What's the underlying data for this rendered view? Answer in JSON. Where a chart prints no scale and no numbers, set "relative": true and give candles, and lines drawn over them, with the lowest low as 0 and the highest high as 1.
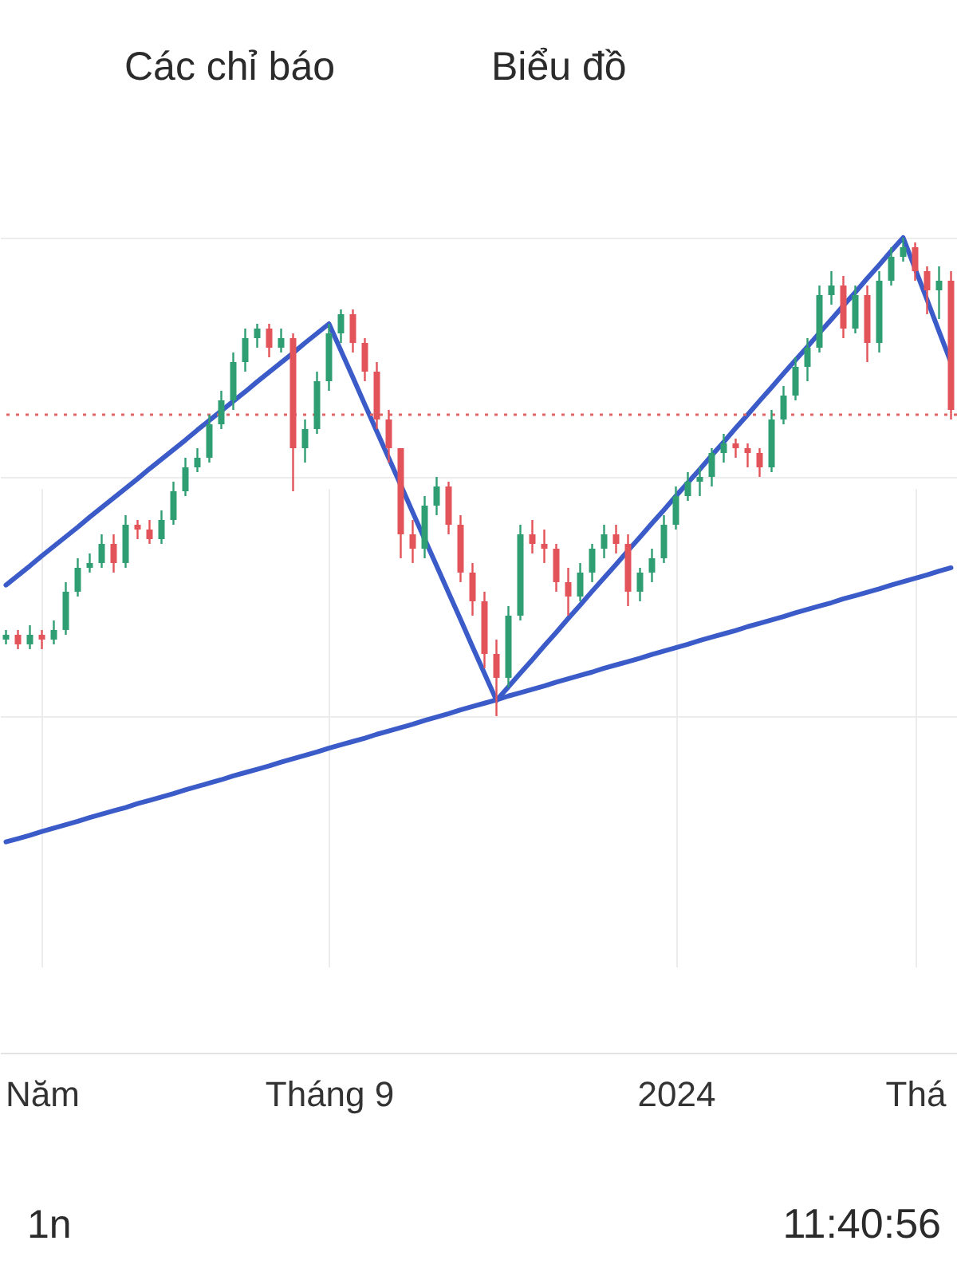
{
  "chart_data": {
    "type": "candlestick",
    "relative": true,
    "categories": [
      null,
      null,
      null,
      "Năm",
      null,
      null,
      null,
      null,
      null,
      null,
      null,
      null,
      null,
      null,
      null,
      null,
      null,
      null,
      null,
      null,
      null,
      null,
      null,
      null,
      null,
      null,
      null,
      "Tháng 9",
      null,
      null,
      null,
      null,
      null,
      null,
      null,
      null,
      null,
      null,
      null,
      null,
      null,
      null,
      null,
      null,
      null,
      null,
      null,
      null,
      null,
      null,
      null,
      null,
      null,
      null,
      null,
      null,
      "2024",
      null,
      null,
      null,
      null,
      null,
      null,
      null,
      null,
      null,
      null,
      null,
      null,
      null,
      null,
      null,
      null,
      null,
      null,
      null,
      "Thá",
      null,
      null,
      null
    ],
    "ohlc": [
      [
        0.16,
        0.18,
        0.15,
        0.17
      ],
      [
        0.17,
        0.18,
        0.14,
        0.15
      ],
      [
        0.15,
        0.19,
        0.14,
        0.17
      ],
      [
        0.17,
        0.18,
        0.14,
        0.16
      ],
      [
        0.16,
        0.2,
        0.15,
        0.18
      ],
      [
        0.18,
        0.28,
        0.17,
        0.26
      ],
      [
        0.26,
        0.33,
        0.25,
        0.31
      ],
      [
        0.31,
        0.34,
        0.3,
        0.32
      ],
      [
        0.32,
        0.38,
        0.31,
        0.36
      ],
      [
        0.36,
        0.38,
        0.3,
        0.32
      ],
      [
        0.32,
        0.42,
        0.31,
        0.4
      ],
      [
        0.4,
        0.41,
        0.37,
        0.39
      ],
      [
        0.39,
        0.41,
        0.36,
        0.37
      ],
      [
        0.37,
        0.43,
        0.36,
        0.41
      ],
      [
        0.41,
        0.49,
        0.4,
        0.47
      ],
      [
        0.47,
        0.54,
        0.46,
        0.52
      ],
      [
        0.52,
        0.56,
        0.51,
        0.54
      ],
      [
        0.54,
        0.63,
        0.53,
        0.61
      ],
      [
        0.61,
        0.68,
        0.6,
        0.66
      ],
      [
        0.66,
        0.76,
        0.64,
        0.74
      ],
      [
        0.74,
        0.81,
        0.72,
        0.79
      ],
      [
        0.79,
        0.82,
        0.77,
        0.81
      ],
      [
        0.81,
        0.82,
        0.75,
        0.77
      ],
      [
        0.77,
        0.81,
        0.76,
        0.79
      ],
      [
        0.79,
        0.8,
        0.47,
        0.56
      ],
      [
        0.56,
        0.62,
        0.53,
        0.6
      ],
      [
        0.6,
        0.72,
        0.59,
        0.7
      ],
      [
        0.7,
        0.82,
        0.68,
        0.8
      ],
      [
        0.8,
        0.85,
        0.78,
        0.84
      ],
      [
        0.84,
        0.85,
        0.76,
        0.78
      ],
      [
        0.78,
        0.79,
        0.7,
        0.72
      ],
      [
        0.72,
        0.74,
        0.6,
        0.62
      ],
      [
        0.62,
        0.64,
        0.53,
        0.56
      ],
      [
        0.56,
        0.56,
        0.33,
        0.38
      ],
      [
        0.38,
        0.41,
        0.32,
        0.35
      ],
      [
        0.35,
        0.46,
        0.33,
        0.44
      ],
      [
        0.44,
        0.5,
        0.42,
        0.48
      ],
      [
        0.48,
        0.49,
        0.38,
        0.4
      ],
      [
        0.4,
        0.42,
        0.28,
        0.3
      ],
      [
        0.3,
        0.32,
        0.21,
        0.24
      ],
      [
        0.24,
        0.26,
        0.1,
        0.13
      ],
      [
        0.13,
        0.16,
        0,
        0.08
      ],
      [
        0.08,
        0.23,
        0.06,
        0.21
      ],
      [
        0.21,
        0.4,
        0.2,
        0.38
      ],
      [
        0.38,
        0.41,
        0.34,
        0.36
      ],
      [
        0.36,
        0.39,
        0.32,
        0.35
      ],
      [
        0.35,
        0.36,
        0.26,
        0.28
      ],
      [
        0.28,
        0.31,
        0.21,
        0.25
      ],
      [
        0.25,
        0.32,
        0.24,
        0.3
      ],
      [
        0.3,
        0.36,
        0.28,
        0.35
      ],
      [
        0.35,
        0.4,
        0.33,
        0.38
      ],
      [
        0.38,
        0.4,
        0.34,
        0.36
      ],
      [
        0.36,
        0.38,
        0.23,
        0.26
      ],
      [
        0.26,
        0.31,
        0.24,
        0.3
      ],
      [
        0.3,
        0.35,
        0.28,
        0.33
      ],
      [
        0.33,
        0.42,
        0.32,
        0.4
      ],
      [
        0.4,
        0.48,
        0.39,
        0.46
      ],
      [
        0.46,
        0.51,
        0.45,
        0.49
      ],
      [
        0.49,
        0.52,
        0.46,
        0.5
      ],
      [
        0.5,
        0.56,
        0.48,
        0.55
      ],
      [
        0.55,
        0.59,
        0.53,
        0.57
      ],
      [
        0.57,
        0.58,
        0.54,
        0.56
      ],
      [
        0.56,
        0.57,
        0.52,
        0.55
      ],
      [
        0.55,
        0.56,
        0.5,
        0.52
      ],
      [
        0.52,
        0.64,
        0.51,
        0.62
      ],
      [
        0.62,
        0.69,
        0.61,
        0.67
      ],
      [
        0.67,
        0.75,
        0.66,
        0.73
      ],
      [
        0.73,
        0.79,
        0.7,
        0.77
      ],
      [
        0.77,
        0.9,
        0.76,
        0.88
      ],
      [
        0.88,
        0.93,
        0.86,
        0.9
      ],
      [
        0.9,
        0.92,
        0.79,
        0.81
      ],
      [
        0.81,
        0.9,
        0.8,
        0.88
      ],
      [
        0.88,
        0.9,
        0.74,
        0.78
      ],
      [
        0.78,
        0.93,
        0.76,
        0.91
      ],
      [
        0.91,
        0.98,
        0.9,
        0.96
      ],
      [
        0.96,
        1,
        0.95,
        0.98
      ],
      [
        0.98,
        0.99,
        0.91,
        0.93
      ],
      [
        0.93,
        0.94,
        0.84,
        0.89
      ],
      [
        0.89,
        0.94,
        0.83,
        0.91
      ],
      [
        0.91,
        0.93,
        0.62,
        0.64
      ]
    ],
    "colors": [
      "#2f9e72",
      "#e2535a",
      "#2f9e72",
      "#e2535a",
      "#2f9e72",
      "#2f9e72",
      "#2f9e72",
      "#2f9e72",
      "#2f9e72",
      "#e2535a",
      "#2f9e72",
      "#e2535a",
      "#e2535a",
      "#2f9e72",
      "#2f9e72",
      "#2f9e72",
      "#2f9e72",
      "#2f9e72",
      "#2f9e72",
      "#2f9e72",
      "#2f9e72",
      "#2f9e72",
      "#e2535a",
      "#2f9e72",
      "#e2535a",
      "#2f9e72",
      "#2f9e72",
      "#2f9e72",
      "#2f9e72",
      "#e2535a",
      "#e2535a",
      "#e2535a",
      "#e2535a",
      "#e2535a",
      "#e2535a",
      "#2f9e72",
      "#2f9e72",
      "#e2535a",
      "#e2535a",
      "#e2535a",
      "#e2535a",
      "#e2535a",
      "#2f9e72",
      "#2f9e72",
      "#e2535a",
      "#e2535a",
      "#e2535a",
      "#e2535a",
      "#2f9e72",
      "#2f9e72",
      "#2f9e72",
      "#e2535a",
      "#e2535a",
      "#2f9e72",
      "#2f9e72",
      "#2f9e72",
      "#2f9e72",
      "#2f9e72",
      "#2f9e72",
      "#2f9e72",
      "#2f9e72",
      "#e2535a",
      "#e2535a",
      "#e2535a",
      "#2f9e72",
      "#2f9e72",
      "#2f9e72",
      "#2f9e72",
      "#2f9e72",
      "#2f9e72",
      "#e2535a",
      "#2f9e72",
      "#e2535a",
      "#2f9e72",
      "#2f9e72",
      "#2f9e72",
      "#e2535a",
      "#e2535a",
      "#2f9e72",
      "#e2535a"
    ],
    "series": [
      {
        "type": "line",
        "color": "#3b5bc9",
        "values": [
          0.274,
          0.294,
          0.314,
          0.335,
          0.355,
          0.375,
          0.395,
          0.416,
          0.436,
          0.456,
          0.476,
          0.496,
          0.517,
          0.537,
          0.557,
          0.577,
          0.598,
          0.618,
          0.638,
          0.658,
          0.678,
          0.699,
          0.719,
          0.739,
          0.759,
          0.78,
          0.8,
          0.82,
          0.764,
          0.708,
          0.651,
          0.595,
          0.539,
          0.483,
          0.426,
          0.37,
          0.314,
          0.258,
          0.202,
          0.145,
          0.089,
          0.033,
          0.061,
          0.09,
          0.118,
          0.147,
          0.175,
          0.204,
          0.232,
          0.261,
          0.289,
          0.317,
          0.346,
          0.374,
          0.403,
          0.431,
          0.46,
          0.488,
          0.516,
          0.545,
          0.573,
          0.602,
          0.63,
          0.659,
          0.687,
          0.716,
          0.744,
          0.772,
          0.801,
          0.829,
          0.858,
          0.886,
          0.915,
          0.943,
          0.972,
          1.0,
          0.935,
          0.87,
          0.804,
          0.739
        ]
      },
      {
        "type": "line",
        "color": "#3b5bc9",
        "values": [
          -0.263,
          -0.256,
          -0.249,
          -0.241,
          -0.234,
          -0.227,
          -0.22,
          -0.212,
          -0.205,
          -0.198,
          -0.191,
          -0.183,
          -0.176,
          -0.169,
          -0.162,
          -0.154,
          -0.147,
          -0.14,
          -0.133,
          -0.125,
          -0.118,
          -0.111,
          -0.104,
          -0.096,
          -0.089,
          -0.082,
          -0.075,
          -0.067,
          -0.06,
          -0.053,
          -0.046,
          -0.038,
          -0.031,
          -0.024,
          -0.017,
          -0.009,
          -0.002,
          0.005,
          0.013,
          0.02,
          0.027,
          0.034,
          0.042,
          0.049,
          0.056,
          0.063,
          0.071,
          0.078,
          0.085,
          0.092,
          0.1,
          0.107,
          0.114,
          0.121,
          0.129,
          0.136,
          0.143,
          0.15,
          0.158,
          0.165,
          0.172,
          0.179,
          0.187,
          0.194,
          0.201,
          0.208,
          0.216,
          0.223,
          0.23,
          0.237,
          0.245,
          0.252,
          0.259,
          0.266,
          0.274,
          0.281,
          0.288,
          0.295,
          0.303,
          0.31
        ]
      }
    ],
    "ref_lines": [
      {
        "axis": "y",
        "value": 0.63,
        "color": "#e06666",
        "line_style": "dotted"
      }
    ],
    "grid": true,
    "annotations": [
      "Các chỉ báo",
      "Biểu đồ",
      "1n",
      "11:40:56"
    ]
  }
}
